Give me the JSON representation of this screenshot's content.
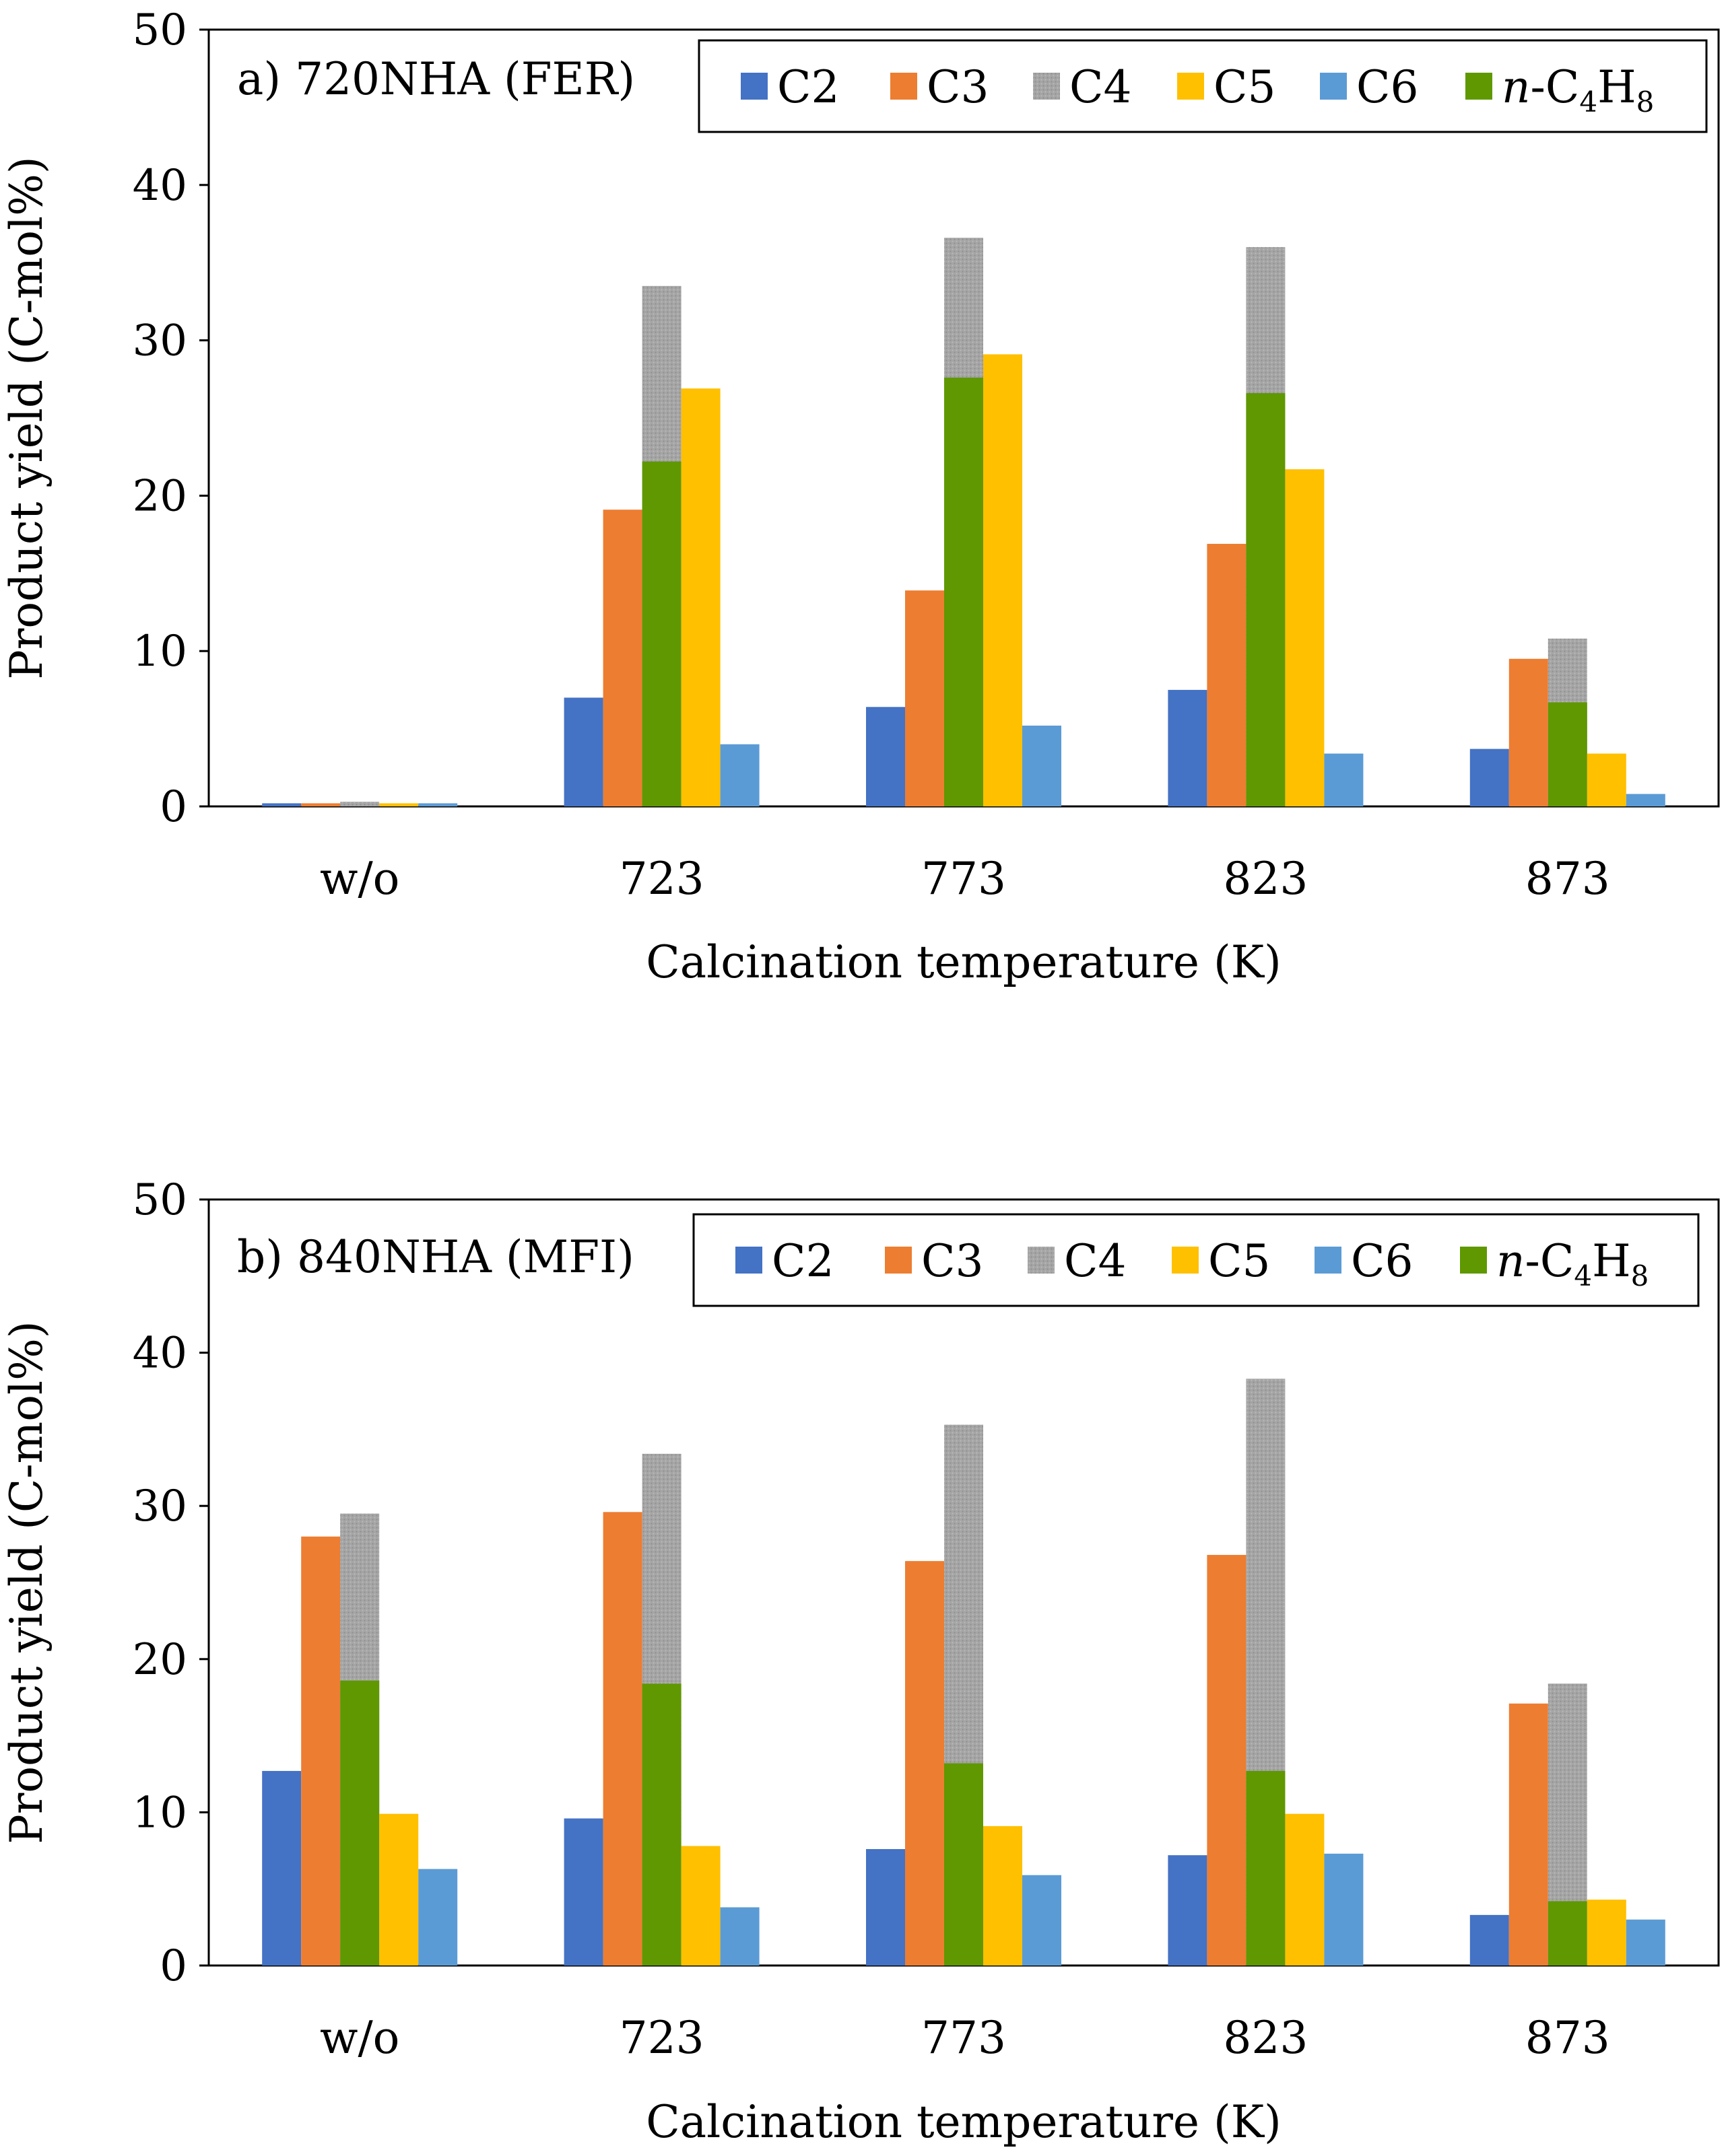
{
  "colors": {
    "C2": "#4472c4",
    "C3": "#ed7d31",
    "C4": "#a5a5a5",
    "C5": "#ffc000",
    "C6": "#5b9bd5",
    "nC4H8": "#5f9800",
    "axis": "#000000",
    "background": "#ffffff"
  },
  "legend_entries": [
    {
      "key": "C2",
      "label": "C2"
    },
    {
      "key": "C3",
      "label": "C3"
    },
    {
      "key": "C4",
      "label": "C4"
    },
    {
      "key": "C5",
      "label": "C5"
    },
    {
      "key": "C6",
      "label": "C6"
    },
    {
      "key": "nC4H8",
      "label": "n-C4H8"
    }
  ],
  "chart_data": [
    {
      "type": "bar",
      "title": "a) 720NHA (FER)",
      "xlabel": "Calcination temperature (K)",
      "ylabel": "Product yield (C-mol%)",
      "ylim": [
        0,
        50
      ],
      "yticks": [
        0,
        10,
        20,
        30,
        40,
        50
      ],
      "categories": [
        "w/o",
        "723",
        "773",
        "823",
        "873"
      ],
      "note": "C4 bar is drawn behind the n-C4H8 bar at the same position (overlapping).",
      "series": [
        {
          "name": "C2",
          "values": [
            0.2,
            7.0,
            6.4,
            7.5,
            3.7
          ]
        },
        {
          "name": "C3",
          "values": [
            0.2,
            19.1,
            13.9,
            16.9,
            9.5
          ]
        },
        {
          "name": "C4",
          "values": [
            0.3,
            33.5,
            36.6,
            36.0,
            10.8
          ]
        },
        {
          "name": "n-C4H8",
          "values": [
            0.0,
            22.2,
            27.6,
            26.6,
            6.7
          ]
        },
        {
          "name": "C5",
          "values": [
            0.2,
            26.9,
            29.1,
            21.7,
            3.4
          ]
        },
        {
          "name": "C6",
          "values": [
            0.2,
            4.0,
            5.2,
            3.4,
            0.8
          ]
        }
      ]
    },
    {
      "type": "bar",
      "title": "b) 840NHA (MFI)",
      "xlabel": "Calcination temperature (K)",
      "ylabel": "Product yield (C-mol%)",
      "ylim": [
        0,
        50
      ],
      "yticks": [
        0,
        10,
        20,
        30,
        40,
        50
      ],
      "categories": [
        "w/o",
        "723",
        "773",
        "823",
        "873"
      ],
      "note": "C4 bar is drawn behind the n-C4H8 bar at the same position (overlapping).",
      "series": [
        {
          "name": "C2",
          "values": [
            12.7,
            9.6,
            7.6,
            7.2,
            3.3
          ]
        },
        {
          "name": "C3",
          "values": [
            28.0,
            29.6,
            26.4,
            26.8,
            17.1
          ]
        },
        {
          "name": "C4",
          "values": [
            29.5,
            33.4,
            35.3,
            38.3,
            18.4
          ]
        },
        {
          "name": "n-C4H8",
          "values": [
            18.6,
            18.4,
            13.2,
            12.7,
            4.2
          ]
        },
        {
          "name": "C5",
          "values": [
            9.9,
            7.8,
            9.1,
            9.9,
            4.3
          ]
        },
        {
          "name": "C6",
          "values": [
            6.3,
            3.8,
            5.9,
            7.3,
            3.0
          ]
        }
      ]
    }
  ]
}
